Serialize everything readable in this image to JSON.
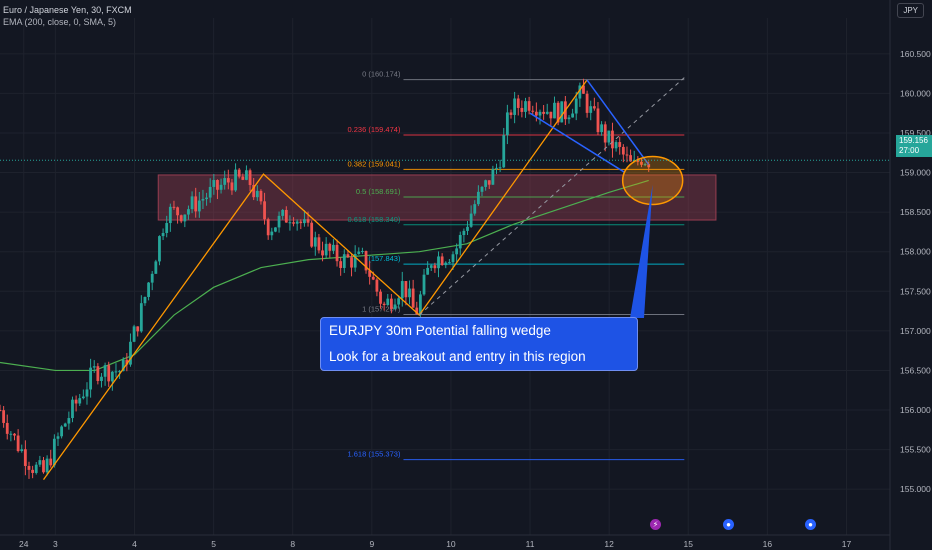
{
  "header": {
    "symbol_line": "Euro / Japanese Yen, 30, FXCM",
    "indicator_line": "EMA (200, close, 0, SMA, 5)"
  },
  "price_scale": {
    "currency": "JPY",
    "last_price": "159.156",
    "countdown": "27:00"
  },
  "callout": {
    "line1": "EURJPY 30m Potential falling wedge",
    "line2": "Look for a breakout and entry in this region"
  },
  "events": [
    {
      "icon": "lightning-icon",
      "glyph": "⚡",
      "color": "#9c27b0"
    },
    {
      "icon": "flag-icon",
      "glyph": "●",
      "color": "#2962ff"
    },
    {
      "icon": "flag-icon",
      "glyph": "●",
      "color": "#2962ff"
    }
  ],
  "colors": {
    "background": "#131722",
    "up": "#26a69a",
    "down": "#ef5350",
    "ema": "#4caf50",
    "zigzag": "#ff9800",
    "wedge": "#2962ff",
    "zone": "#b2455a"
  },
  "chart_data": {
    "type": "candlestick",
    "title": "Euro / Japanese Yen, 30, FXCM",
    "ylim": [
      154.8,
      160.7
    ],
    "y_ticks": [
      "160.500",
      "160.000",
      "159.500",
      "159.000",
      "158.500",
      "158.000",
      "157.500",
      "157.000",
      "156.500",
      "156.000",
      "155.500",
      "155.000"
    ],
    "x_ticks": [
      {
        "label": "24",
        "x": 2.6
      },
      {
        "label": "3",
        "x": 3
      },
      {
        "label": "4",
        "x": 4
      },
      {
        "label": "5",
        "x": 5
      },
      {
        "label": "8",
        "x": 6
      },
      {
        "label": "9",
        "x": 7
      },
      {
        "label": "10",
        "x": 8
      },
      {
        "label": "11",
        "x": 9
      },
      {
        "label": "12",
        "x": 10
      },
      {
        "label": "15",
        "x": 11
      },
      {
        "label": "16",
        "x": 12
      },
      {
        "label": "17",
        "x": 13
      }
    ],
    "xlim": [
      2.3,
      13.55
    ],
    "price_path": [
      [
        2.3,
        156.0
      ],
      [
        2.5,
        155.6
      ],
      [
        2.7,
        155.3
      ],
      [
        2.85,
        155.2
      ],
      [
        3.1,
        155.8
      ],
      [
        3.5,
        156.5
      ],
      [
        3.85,
        156.5
      ],
      [
        4.1,
        157.3
      ],
      [
        4.4,
        158.5
      ],
      [
        4.6,
        158.5
      ],
      [
        4.9,
        158.7
      ],
      [
        5.2,
        158.9
      ],
      [
        5.45,
        158.9
      ],
      [
        5.7,
        158.3
      ],
      [
        6.0,
        158.5
      ],
      [
        6.3,
        158.1
      ],
      [
        6.6,
        157.9
      ],
      [
        6.9,
        157.9
      ],
      [
        7.15,
        157.3
      ],
      [
        7.4,
        157.6
      ],
      [
        7.55,
        157.2
      ],
      [
        7.75,
        157.9
      ],
      [
        8.05,
        158.0
      ],
      [
        8.3,
        158.6
      ],
      [
        8.6,
        159.1
      ],
      [
        8.75,
        159.8
      ],
      [
        9.0,
        159.9
      ],
      [
        9.2,
        159.8
      ],
      [
        9.45,
        159.75
      ],
      [
        9.65,
        160.0
      ],
      [
        9.8,
        159.7
      ],
      [
        9.95,
        159.45
      ],
      [
        10.15,
        159.25
      ],
      [
        10.3,
        159.05
      ],
      [
        10.4,
        159.2
      ],
      [
        10.5,
        159.16
      ]
    ],
    "series": [
      {
        "name": "EMA (200, close, 0, SMA, 5)",
        "points": [
          [
            2.3,
            156.6
          ],
          [
            3.0,
            156.5
          ],
          [
            3.5,
            156.5
          ],
          [
            4.0,
            156.7
          ],
          [
            4.5,
            157.2
          ],
          [
            5.0,
            157.55
          ],
          [
            5.6,
            157.8
          ],
          [
            6.2,
            157.9
          ],
          [
            6.9,
            157.95
          ],
          [
            7.6,
            158.0
          ],
          [
            8.2,
            158.1
          ],
          [
            8.8,
            158.35
          ],
          [
            9.4,
            158.55
          ],
          [
            10.0,
            158.75
          ],
          [
            10.5,
            158.9
          ]
        ]
      }
    ],
    "zigzag": [
      [
        2.85,
        155.12
      ],
      [
        5.63,
        158.98
      ],
      [
        7.6,
        157.2
      ],
      [
        9.72,
        160.17
      ]
    ],
    "wedge_upper": [
      [
        9.72,
        160.17
      ],
      [
        10.5,
        159.1
      ]
    ],
    "wedge_lower": [
      [
        9.0,
        159.75
      ],
      [
        10.2,
        159.0
      ]
    ],
    "trendline": [
      [
        7.6,
        157.2
      ],
      [
        10.95,
        160.2
      ]
    ],
    "zone": {
      "from": 158.4,
      "to": 158.97,
      "x_start": 4.3,
      "x_end": 11.35
    },
    "circle": {
      "x": 10.55,
      "y": 158.9
    },
    "fibonacci": {
      "x_start": 7.4,
      "x_end": 10.95,
      "levels": [
        {
          "ratio": "0",
          "price": 160.174,
          "label": "0 (160.174)",
          "color": "#787b86"
        },
        {
          "ratio": "0.236",
          "price": 159.474,
          "label": "0.236 (159.474)",
          "color": "#f23645"
        },
        {
          "ratio": "0.382",
          "price": 159.041,
          "label": "0.382 (159.041)",
          "color": "#ff9800"
        },
        {
          "ratio": "0.5",
          "price": 158.691,
          "label": "0.5 (158.691)",
          "color": "#4caf50"
        },
        {
          "ratio": "0.618",
          "price": 158.34,
          "label": "0.618 (158.340)",
          "color": "#089981"
        },
        {
          "ratio": "0.786",
          "price": 157.843,
          "label": "(157.843)",
          "color": "#00bcd4"
        },
        {
          "ratio": "1",
          "price": 157.207,
          "label": "1 (157.207)",
          "color": "#787b86"
        },
        {
          "ratio": "1.618",
          "price": 155.373,
          "label": "1.618 (155.373)",
          "color": "#2962ff"
        }
      ]
    }
  }
}
